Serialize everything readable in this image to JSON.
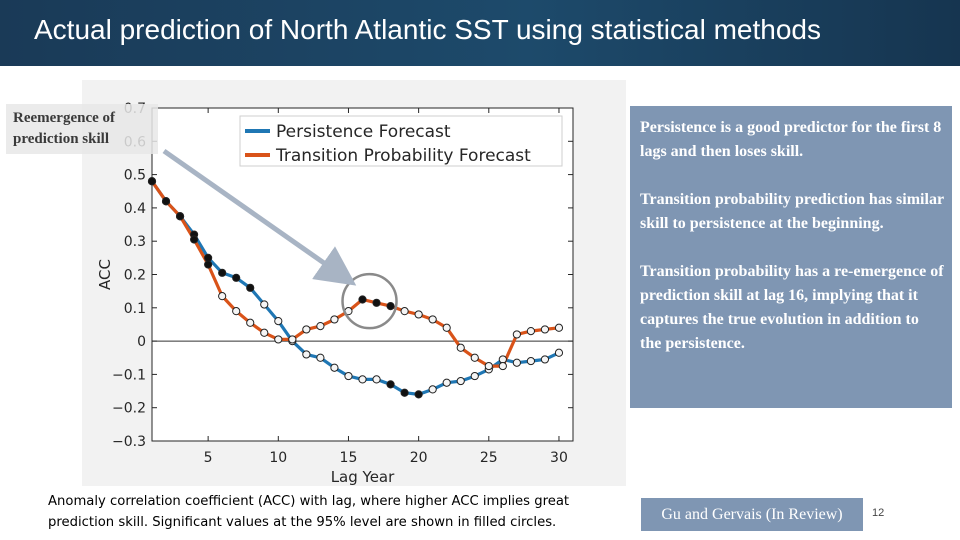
{
  "slide": {
    "title": "Actual prediction of North Atlantic SST using statistical methods",
    "reemergence_label_line1": "Reemergence of",
    "reemergence_label_line2": "prediction skill",
    "notes": [
      "Persistence is a good predictor for the first 8 lags and then loses skill.",
      "Transition probability prediction has similar skill to persistence at the beginning.",
      "Transition probability has a re-emergence of prediction skill at lag 16, implying that it captures the true evolution in addition to the persistence."
    ],
    "caption": "Anomaly correlation coefficient (ACC) with lag, where higher ACC implies great prediction skill.  Significant values at the 95% level are shown in filled circles.",
    "citation": "Gu and Gervais (In Review)",
    "page_number": "12"
  },
  "colors": {
    "persistence": "#1f77b4",
    "transition": "#d95319",
    "title_bar": "#1d4a6b",
    "note_box": "#7f96b3"
  },
  "chart_data": {
    "type": "line",
    "xlabel": "Lag Year",
    "ylabel": "ACC",
    "xlim": [
      1,
      31
    ],
    "ylim": [
      -0.3,
      0.7
    ],
    "xticks": [
      5,
      10,
      15,
      20,
      25,
      30
    ],
    "yticks": [
      -0.3,
      -0.2,
      -0.1,
      0,
      0.1,
      0.2,
      0.3,
      0.4,
      0.5,
      0.6,
      0.7
    ],
    "ytick_labels": [
      "−0.3",
      "−0.2",
      "−0.1",
      "0",
      "0.1",
      "0.2",
      "0.3",
      "0.4",
      "0.5",
      "0.6",
      "0.7"
    ],
    "zero_line": true,
    "legend_position": "top-right",
    "x": [
      1,
      2,
      3,
      4,
      5,
      6,
      7,
      8,
      9,
      10,
      11,
      12,
      13,
      14,
      15,
      16,
      17,
      18,
      19,
      20,
      21,
      22,
      23,
      24,
      25,
      26,
      27,
      28,
      29,
      30
    ],
    "series": [
      {
        "name": "Persistence Forecast",
        "color": "#1f77b4",
        "values": [
          0.48,
          0.42,
          0.375,
          0.32,
          0.25,
          0.205,
          0.19,
          0.16,
          0.11,
          0.06,
          0.0,
          -0.04,
          -0.05,
          -0.08,
          -0.105,
          -0.115,
          -0.115,
          -0.13,
          -0.155,
          -0.16,
          -0.145,
          -0.125,
          -0.12,
          -0.105,
          -0.085,
          -0.055,
          -0.065,
          -0.06,
          -0.055,
          -0.035
        ],
        "significant": [
          true,
          true,
          true,
          true,
          true,
          true,
          true,
          true,
          false,
          false,
          false,
          false,
          false,
          false,
          false,
          false,
          false,
          true,
          true,
          true,
          false,
          false,
          false,
          false,
          false,
          false,
          false,
          false,
          false,
          false
        ]
      },
      {
        "name": "Transition Probability Forecast",
        "color": "#d95319",
        "values": [
          0.48,
          0.42,
          0.375,
          0.305,
          0.23,
          0.135,
          0.09,
          0.055,
          0.025,
          0.005,
          0.005,
          0.035,
          0.045,
          0.065,
          0.09,
          0.125,
          0.115,
          0.105,
          0.09,
          0.08,
          0.065,
          0.04,
          -0.02,
          -0.05,
          -0.075,
          -0.075,
          0.02,
          0.03,
          0.035,
          0.04
        ],
        "significant": [
          true,
          true,
          true,
          true,
          true,
          false,
          false,
          false,
          false,
          false,
          false,
          false,
          false,
          false,
          false,
          true,
          true,
          true,
          false,
          false,
          false,
          false,
          false,
          false,
          false,
          false,
          false,
          false,
          false,
          false
        ]
      }
    ],
    "highlight_circle_at_lag": 16.5,
    "highlight_circle_at_acc": 0.12
  }
}
